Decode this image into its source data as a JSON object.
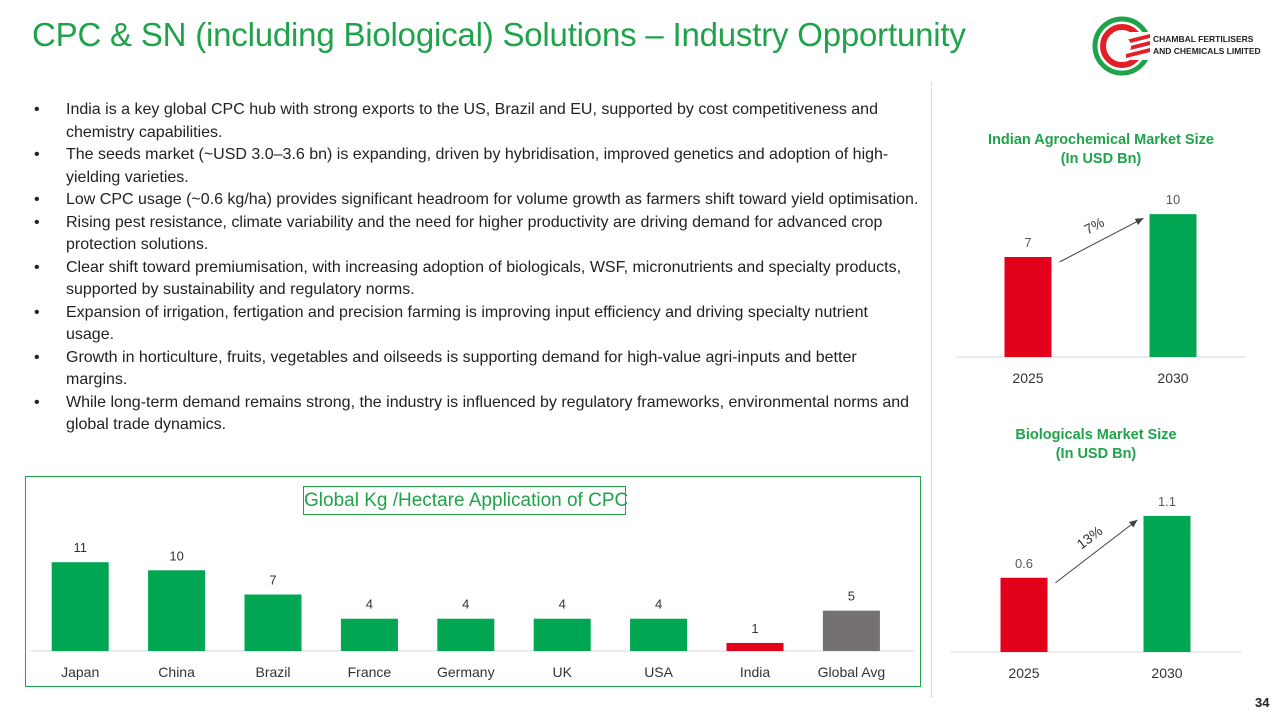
{
  "title": "CPC & SN (including Biological) Solutions – Industry Opportunity",
  "logo": {
    "line1": "CHAMBAL FERTILISERS",
    "line2": "AND CHEMICALS LIMITED",
    "colors": {
      "red": "#e31e24",
      "green": "#1fa34a"
    }
  },
  "bullets": [
    "India is a key global CPC  hub with strong exports to the US, Brazil and EU, supported by cost competitiveness and chemistry capabilities.",
    "The seeds market (~USD 3.0–3.6 bn) is expanding, driven by hybridisation, improved genetics and adoption of high-yielding varieties.",
    "Low CPC usage (~0.6 kg/ha) provides significant headroom for volume growth as farmers shift toward yield optimisation.",
    "Rising pest resistance, climate variability and the need for higher productivity are driving demand for advanced crop protection solutions.",
    "Clear shift toward premiumisation, with increasing adoption of biologicals, WSF, micronutrients and specialty products, supported by sustainability and regulatory norms.",
    "Expansion of irrigation, fertigation and precision farming is improving input efficiency and driving specialty nutrient usage.",
    "Growth in horticulture, fruits, vegetables and oilseeds is supporting demand for high-value agri-inputs and better margins.",
    "While long-term demand remains strong, the industry is influenced by regulatory frameworks, environmental norms and global trade dynamics."
  ],
  "colors": {
    "green": "#00a651",
    "red": "#e2001a",
    "grey": "#767171",
    "title_green": "#1fa34a"
  },
  "chart_data": [
    {
      "type": "bar",
      "title": "Global Kg /Hectare Application of CPC",
      "categories": [
        "Japan",
        "China",
        "Brazil",
        "France",
        "Germany",
        "UK",
        "USA",
        "India",
        "Global Avg"
      ],
      "values": [
        11,
        10,
        7,
        4,
        4,
        4,
        4,
        1,
        5
      ],
      "bar_colors": [
        "#00a651",
        "#00a651",
        "#00a651",
        "#00a651",
        "#00a651",
        "#00a651",
        "#00a651",
        "#e2001a",
        "#767171"
      ],
      "ylim": [
        0,
        12
      ],
      "grid": false
    },
    {
      "type": "bar",
      "title": "Indian Agrochemical Market Size",
      "subtitle": "(In USD Bn)",
      "categories": [
        "2025",
        "2030"
      ],
      "values": [
        7,
        10
      ],
      "bar_colors": [
        "#e2001a",
        "#00a651"
      ],
      "growth_label": "7%",
      "ylim": [
        0,
        10.5
      ],
      "grid": false
    },
    {
      "type": "bar",
      "title": "Biologicals Market Size",
      "subtitle": "(In USD Bn)",
      "categories": [
        "2025",
        "2030"
      ],
      "values": [
        0.6,
        1.1
      ],
      "bar_colors": [
        "#e2001a",
        "#00a651"
      ],
      "growth_label": "13%",
      "ylim": [
        0,
        1.18
      ],
      "grid": false
    }
  ],
  "page_number": "34"
}
